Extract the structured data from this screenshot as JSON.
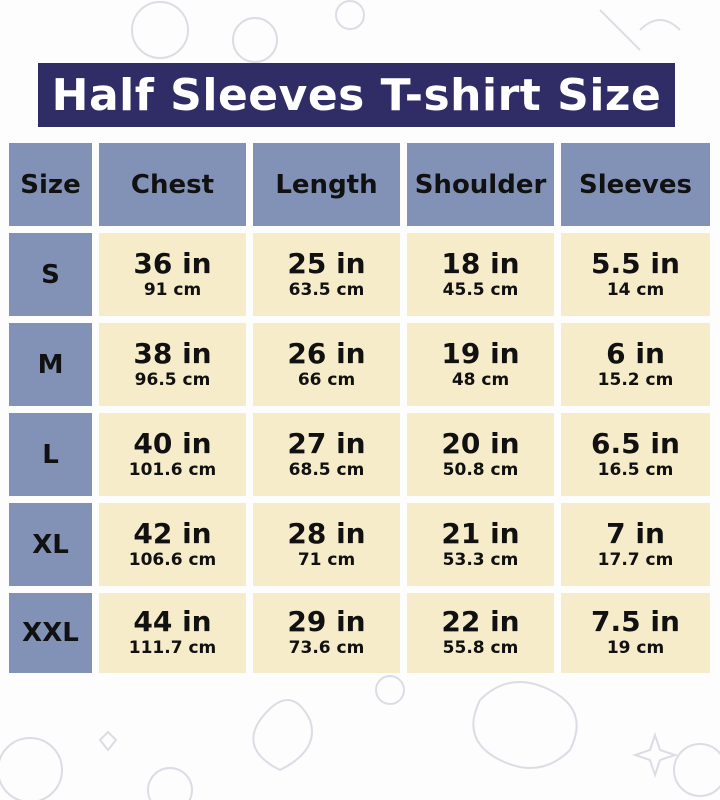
{
  "title": "Half Sleeves T-shirt Size",
  "headers": [
    "Size",
    "Chest",
    "Length",
    "Shoulder",
    "Sleeves"
  ],
  "colors": {
    "title_bg": "#2f2c66",
    "header_bg": "#8291b6",
    "cell_bg": "#f6ecca"
  },
  "rows": [
    {
      "size": "S",
      "values": [
        {
          "in": "36 in",
          "cm": "91 cm"
        },
        {
          "in": "25 in",
          "cm": "63.5 cm"
        },
        {
          "in": "18 in",
          "cm": "45.5 cm"
        },
        {
          "in": "5.5 in",
          "cm": "14 cm"
        }
      ]
    },
    {
      "size": "M",
      "values": [
        {
          "in": "38 in",
          "cm": "96.5 cm"
        },
        {
          "in": "26 in",
          "cm": "66 cm"
        },
        {
          "in": "19 in",
          "cm": "48 cm"
        },
        {
          "in": "6 in",
          "cm": "15.2 cm"
        }
      ]
    },
    {
      "size": "L",
      "values": [
        {
          "in": "40 in",
          "cm": "101.6 cm"
        },
        {
          "in": "27 in",
          "cm": "68.5 cm"
        },
        {
          "in": "20 in",
          "cm": "50.8 cm"
        },
        {
          "in": "6.5 in",
          "cm": "16.5 cm"
        }
      ]
    },
    {
      "size": "XL",
      "values": [
        {
          "in": "42 in",
          "cm": "106.6 cm"
        },
        {
          "in": "28 in",
          "cm": "71 cm"
        },
        {
          "in": "21 in",
          "cm": "53.3 cm"
        },
        {
          "in": "7 in",
          "cm": "17.7 cm"
        }
      ]
    },
    {
      "size": "XXL",
      "values": [
        {
          "in": "44 in",
          "cm": "111.7 cm"
        },
        {
          "in": "29 in",
          "cm": "73.6 cm"
        },
        {
          "in": "22 in",
          "cm": "55.8 cm"
        },
        {
          "in": "7.5 in",
          "cm": "19 cm"
        }
      ]
    }
  ]
}
